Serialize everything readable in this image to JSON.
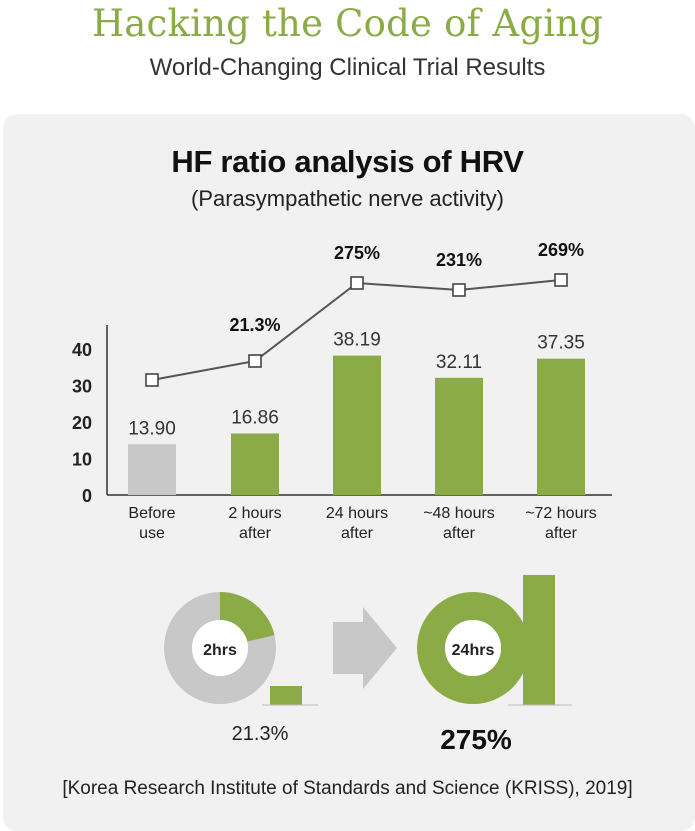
{
  "header": {
    "title": "Hacking the Code of Aging",
    "subtitle": "World-Changing Clinical Trial Results"
  },
  "chart_data": {
    "type": "bar",
    "title": "HF ratio analysis of HRV",
    "subtitle": "(Parasympathetic nerve activity)",
    "categories": [
      [
        "Before",
        "use"
      ],
      [
        "2 hours",
        "after"
      ],
      [
        "24 hours",
        "after"
      ],
      [
        "~48 hours",
        "after"
      ],
      [
        "~72 hours",
        "after"
      ]
    ],
    "values": [
      13.9,
      16.86,
      38.19,
      32.11,
      37.35
    ],
    "value_labels": [
      "13.90",
      "16.86",
      "38.19",
      "32.11",
      "37.35"
    ],
    "bar_colors": [
      "#c8c8c8",
      "#8aab46",
      "#8aab46",
      "#8aab46",
      "#8aab46"
    ],
    "yticks": [
      0,
      10,
      20,
      30,
      40
    ],
    "ylim": [
      0,
      45
    ],
    "xlabel": "",
    "ylabel": "",
    "grid": false,
    "increase_line": {
      "type": "line",
      "points": [
        null,
        21.3,
        275,
        231,
        269
      ],
      "labels": [
        "",
        "21.3%",
        "275%",
        "231%",
        "269%"
      ]
    },
    "comparison": {
      "left": {
        "label": "2hrs",
        "percent": 21.3,
        "caption": "21.3%"
      },
      "right": {
        "label": "24hrs",
        "percent": 275,
        "caption": "275%"
      }
    }
  },
  "source": "[Korea Research Institute of Standards and Science (KRISS), 2019]",
  "colors": {
    "accent": "#8aab46",
    "neutral": "#c8c8c8",
    "panel": "#f1f1f1"
  }
}
